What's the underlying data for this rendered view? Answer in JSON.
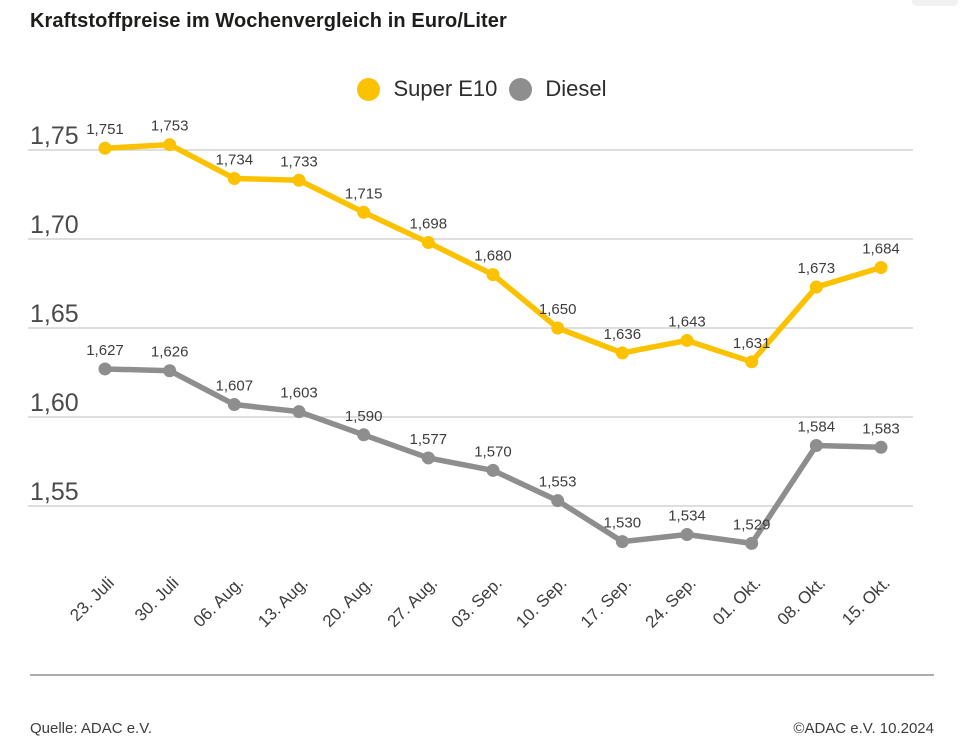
{
  "title": "Kraftstoffpreise im Wochenvergleich in Euro/Liter",
  "footer": {
    "source": "Quelle: ADAC e.V.",
    "copyright": "©ADAC e.V. 10.2024"
  },
  "colors": {
    "super_e10": "#FCC200",
    "diesel": "#8E8E8E",
    "grid": "#C9C9C9",
    "axis_text": "#4A4A4A",
    "label_text": "#3D3D3D",
    "title_text": "#1D1D1B",
    "divider": "#ACACAC"
  },
  "chart_data": {
    "type": "line",
    "title": "Kraftstoffpreise im Wochenvergleich in Euro/Liter",
    "categories": [
      "23. Juli",
      "30. Juli",
      "06. Aug.",
      "13. Aug.",
      "20. Aug.",
      "27. Aug.",
      "03. Sep.",
      "10. Sep.",
      "17. Sep.",
      "24. Sep.",
      "01. Okt.",
      "08. Okt.",
      "15. Okt."
    ],
    "series": [
      {
        "name": "Super E10",
        "color": "#FCC200",
        "values": [
          1.751,
          1.753,
          1.734,
          1.733,
          1.715,
          1.698,
          1.68,
          1.65,
          1.636,
          1.643,
          1.631,
          1.673,
          1.684
        ],
        "labels": [
          "1,751",
          "1,753",
          "1,734",
          "1,733",
          "1,715",
          "1,698",
          "1,680",
          "1,650",
          "1,636",
          "1,643",
          "1,631",
          "1,673",
          "1,684"
        ]
      },
      {
        "name": "Diesel",
        "color": "#8E8E8E",
        "values": [
          1.627,
          1.626,
          1.607,
          1.603,
          1.59,
          1.577,
          1.57,
          1.553,
          1.53,
          1.534,
          1.529,
          1.584,
          1.583
        ],
        "labels": [
          "1,627",
          "1,626",
          "1,607",
          "1,603",
          "1,590",
          "1,577",
          "1,570",
          "1,553",
          "1,530",
          "1,534",
          "1,529",
          "1,584",
          "1,583"
        ]
      }
    ],
    "yticks": [
      {
        "label": "1,75",
        "value": 1.75
      },
      {
        "label": "1,70",
        "value": 1.7
      },
      {
        "label": "1,65",
        "value": 1.65
      },
      {
        "label": "1,60",
        "value": 1.6
      },
      {
        "label": "1,55",
        "value": 1.55
      }
    ],
    "ylim": [
      1.55,
      1.75
    ],
    "grid": true,
    "legend_position": "top",
    "xlabel": "",
    "ylabel": ""
  }
}
